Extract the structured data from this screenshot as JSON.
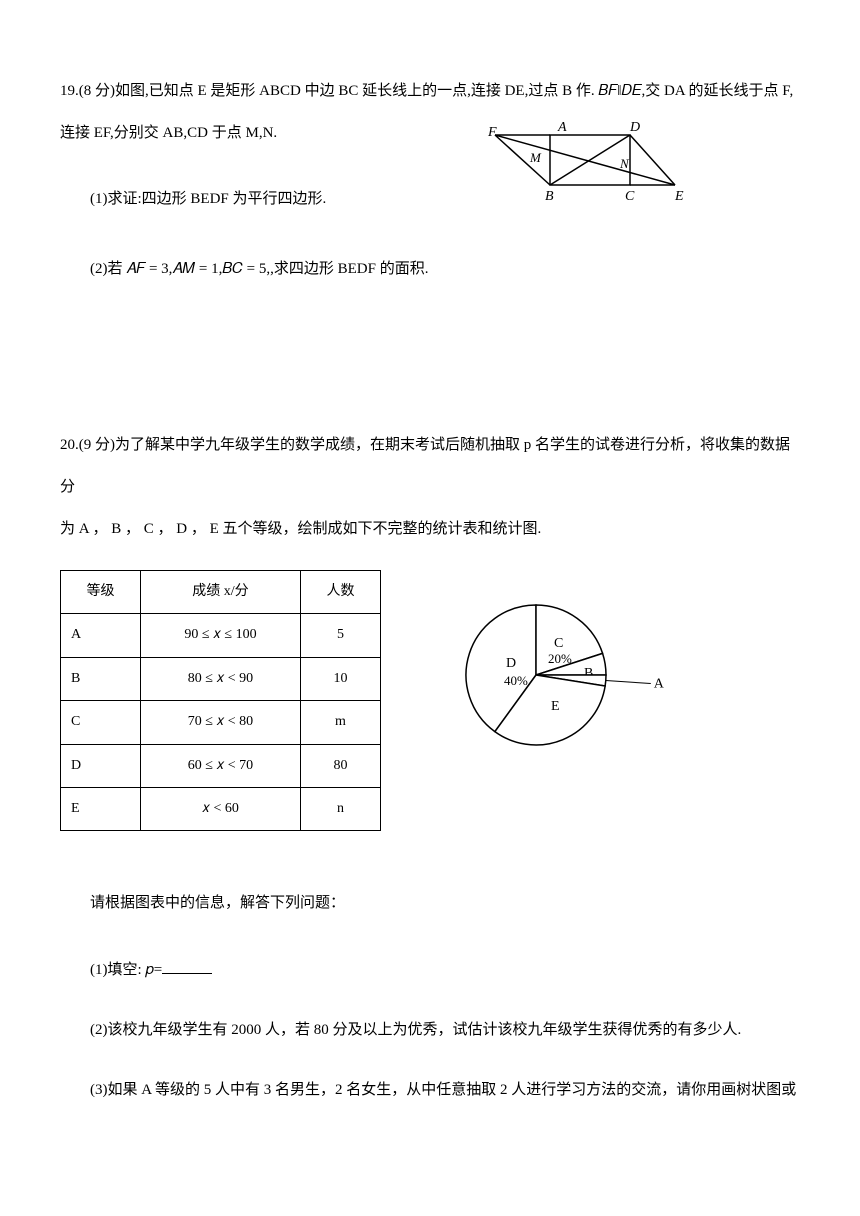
{
  "q19": {
    "header": "19.(8 分)如图,已知点 E 是矩形 ABCD 中边 BC 延长线上的一点,连接 DE,过点 B 作. 𝐵𝐹‖𝐷𝐸,交 DA 的延长线于点 F,",
    "line2": "连接 EF,分别交 AB,CD 于点 M,N.",
    "part1": "(1)求证:四边形 BEDF 为平行四边形.",
    "part2": "(2)若 𝐴𝐹 = 3,𝐴𝑀 = 1,𝐵𝐶 = 5,,求四边形 BEDF 的面积.",
    "diagram": {
      "labels": {
        "F": "F",
        "A": "A",
        "D": "D",
        "M": "M",
        "N": "N",
        "B": "B",
        "C": "C",
        "E": "E"
      }
    }
  },
  "q20": {
    "header": "20.(9 分)为了解某中学九年级学生的数学成绩，在期末考试后随机抽取 p 名学生的试卷进行分析，将收集的数据分",
    "line2": "为 A ， B ， C ， D ， E 五个等级，绘制成如下不完整的统计表和统计图.",
    "table": {
      "headers": {
        "grade": "等级",
        "score": "成绩 x/分",
        "count": "人数"
      },
      "rows": [
        {
          "grade": "A",
          "score": "90 ≤ 𝑥 ≤ 100",
          "count": "5"
        },
        {
          "grade": "B",
          "score": "80 ≤ 𝑥 < 90",
          "count": "10"
        },
        {
          "grade": "C",
          "score": "70 ≤ 𝑥 < 80",
          "count": "m"
        },
        {
          "grade": "D",
          "score": "60 ≤ 𝑥 < 70",
          "count": "80"
        },
        {
          "grade": "E",
          "score": "𝑥 < 60",
          "count": "n"
        }
      ]
    },
    "pie": {
      "slices": [
        {
          "label": "D",
          "pct_label": "40%",
          "pct": 40
        },
        {
          "label": "C",
          "pct_label": "20%",
          "pct": 20
        },
        {
          "label": "B",
          "pct_label": "",
          "pct": 5
        },
        {
          "label": "A",
          "pct_label": "",
          "pct": 2.5
        },
        {
          "label": "E",
          "pct_label": "",
          "pct": 32.5
        }
      ],
      "stroke": "#000000",
      "fill": "#ffffff",
      "radius": 70,
      "fontsize": 14
    },
    "instr": "请根据图表中的信息，解答下列问题：",
    "part1_a": "(1)填空: 𝑝=",
    "part2": "(2)该校九年级学生有 2000 人，若 80 分及以上为优秀，试估计该校九年级学生获得优秀的有多少人.",
    "part3": "(3)如果 A 等级的 5 人中有 3 名男生，2 名女生，从中任意抽取 2 人进行学习方法的交流，请你用画树状图或"
  }
}
